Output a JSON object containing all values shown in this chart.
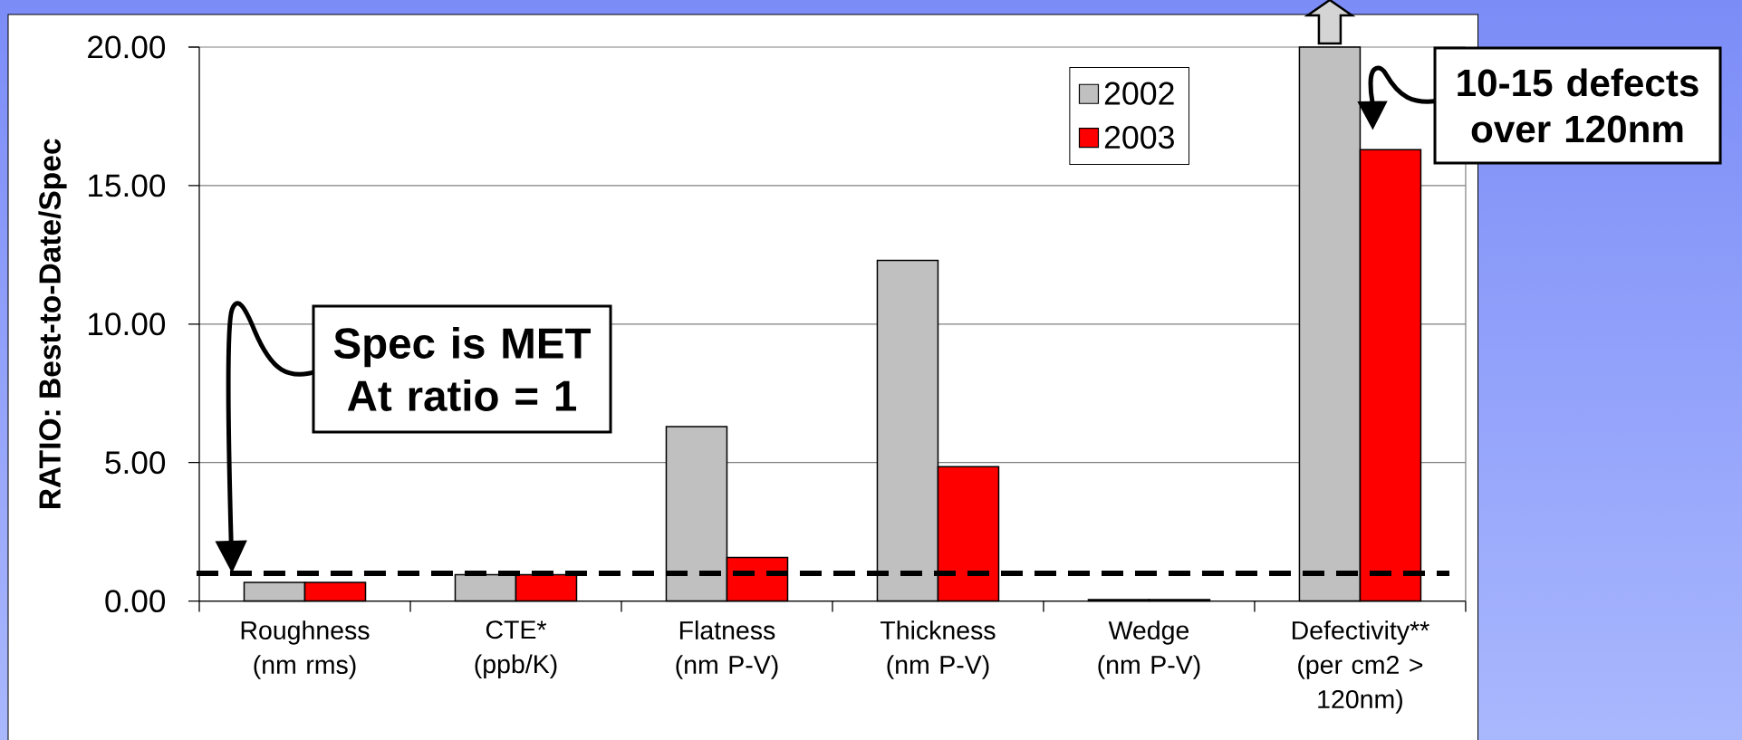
{
  "chart_data": {
    "type": "bar",
    "categories": [
      "Roughness\n(nm rms)",
      "CTE*\n(ppb/K)",
      "Flatness\n(nm P-V)",
      "Thickness\n(nm P-V)",
      "Wedge\n(nm P-V)",
      "Defectivity**\n(per cm2 >\n120nm)"
    ],
    "series": [
      {
        "name": "2002",
        "color": "#c0c0c0",
        "values": [
          0.67,
          0.95,
          6.3,
          12.3,
          0.05,
          20
        ]
      },
      {
        "name": "2003",
        "color": "#ff0000",
        "values": [
          0.67,
          0.95,
          1.57,
          4.85,
          0.05,
          16.3
        ]
      }
    ],
    "ylabel": "RATIO: Best-to-Date/Spec",
    "ylim": [
      0,
      20
    ],
    "yticks": [
      {
        "value": 0,
        "label": "0.00"
      },
      {
        "value": 5,
        "label": "5.00"
      },
      {
        "value": 10,
        "label": "10.00"
      },
      {
        "value": 15,
        "label": "15.00"
      },
      {
        "value": 20,
        "label": "20.00"
      }
    ],
    "grid": "y",
    "legend": "top right",
    "ref_lines": [
      {
        "axis": "y",
        "value": 1,
        "color": "#000000",
        "line_style": "dashed"
      }
    ],
    "annotations": [
      "Spec is MET\nAt ratio = 1",
      {
        "text": "10-15 defects\nover 120nm",
        "x": "Defectivity**\n(per cm2 >\n120nm)",
        "y": 17
      }
    ]
  }
}
